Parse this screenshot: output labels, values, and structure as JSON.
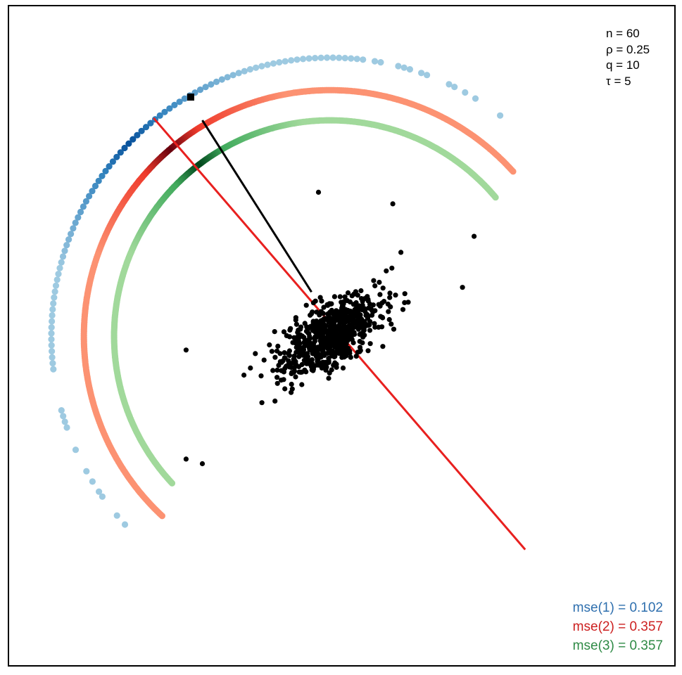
{
  "chart_data": {
    "type": "scatter",
    "title": "",
    "xlabel": "",
    "ylabel": "",
    "axes": "hidden",
    "grid": false,
    "legend": "none",
    "annotations": {
      "top_right": [
        "n = 60",
        "ρ = 0.25",
        "q = 10",
        "τ = 5"
      ],
      "bottom_right": [
        {
          "text": "mse(1) = 0.102",
          "color": "#2e6fae"
        },
        {
          "text": "mse(2) = 0.357",
          "color": "#cc1f1f"
        },
        {
          "text": "mse(3) = 0.357",
          "color": "#2e8a45"
        }
      ]
    },
    "point_cloud": {
      "color": "#000000",
      "center": [
        0.0,
        0.0
      ],
      "count": 700,
      "sd_major": 0.12,
      "sd_minor": 0.06,
      "orientation_deg": 35,
      "outliers": [
        [
          -0.62,
          -0.06
        ],
        [
          -0.62,
          -0.53
        ],
        [
          -0.55,
          -0.55
        ],
        [
          -0.05,
          0.62
        ],
        [
          0.27,
          0.57
        ],
        [
          0.62,
          0.43
        ],
        [
          0.57,
          0.21
        ]
      ]
    },
    "rings": [
      {
        "name": "mse(1)",
        "radius": 1.2,
        "start_deg": 45,
        "end_deg": 230,
        "base_color": "#9ecae1",
        "mid_color": "#3182bd",
        "peak_color": "#08519c",
        "peak_deg": 136,
        "sparse": true
      },
      {
        "name": "mse(2)",
        "radius": 1.06,
        "start_deg": 42,
        "end_deg": 227,
        "base_color": "#fc9272",
        "mid_color": "#ef3b2c",
        "peak_color": "#67000d",
        "peak_deg": 131,
        "sparse": false
      },
      {
        "name": "mse(3)",
        "radius": 0.93,
        "start_deg": 40,
        "end_deg": 223,
        "base_color": "#a1d99b",
        "mid_color": "#41ab5d",
        "peak_color": "#00441b",
        "peak_deg": 128,
        "sparse": false
      }
    ],
    "lines": [
      {
        "name": "red-line",
        "color": "#e8201f",
        "from": [
          -0.76,
          0.94
        ],
        "to": [
          0.84,
          -0.92
        ]
      },
      {
        "name": "black-line",
        "color": "#000000",
        "from": [
          -0.55,
          0.93
        ],
        "to": [
          -0.08,
          0.19
        ]
      }
    ],
    "marker": {
      "name": "square-marker",
      "color": "#000000",
      "at": [
        -0.6,
        1.03
      ]
    }
  }
}
